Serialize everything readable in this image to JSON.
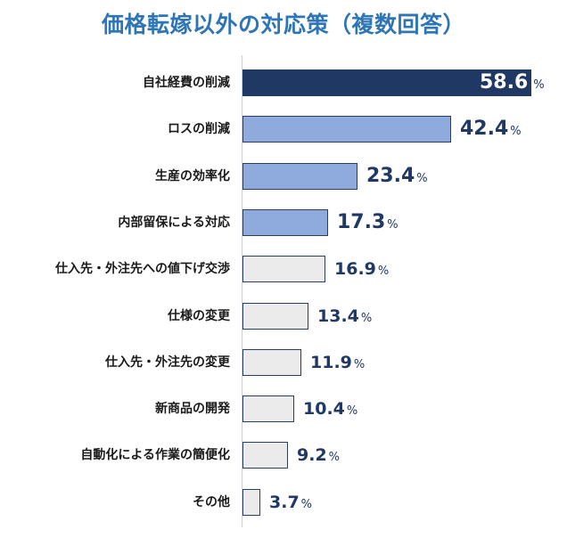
{
  "title": "価格転嫁以外の対応策（複数回答）",
  "colors": {
    "title": "#2e75b6",
    "top_bar": "#1f3864",
    "mid_bar": "#8faadc",
    "low_bar": "#ebebeb",
    "value_text": "#1f3864"
  },
  "chart_data": {
    "type": "bar",
    "orientation": "horizontal",
    "title": "価格転嫁以外の対応策（複数回答）",
    "xlabel": "",
    "ylabel": "",
    "unit": "%",
    "categories": [
      "自社経費の削減",
      "ロスの削減",
      "生産の効率化",
      "内部留保による対応",
      "仕入先・外注先への値下げ交渉",
      "仕様の変更",
      "仕入先・外注先の変更",
      "新商品の開発",
      "自動化による作業の簡便化",
      "その他"
    ],
    "values": [
      58.6,
      42.4,
      23.4,
      17.3,
      16.9,
      13.4,
      11.9,
      10.4,
      9.2,
      3.7
    ],
    "grid": false,
    "legend": null
  },
  "rows": [
    {
      "label": "自社経費の削減",
      "value": "58.6",
      "pct": "%"
    },
    {
      "label": "ロスの削減",
      "value": "42.4",
      "pct": "%"
    },
    {
      "label": "生産の効率化",
      "value": "23.4",
      "pct": "%"
    },
    {
      "label": "内部留保による対応",
      "value": "17.3",
      "pct": "%"
    },
    {
      "label": "仕入先・外注先への値下げ交渉",
      "value": "16.9",
      "pct": "%"
    },
    {
      "label": "仕様の変更",
      "value": "13.4",
      "pct": "%"
    },
    {
      "label": "仕入先・外注先の変更",
      "value": "11.9",
      "pct": "%"
    },
    {
      "label": "新商品の開発",
      "value": "10.4",
      "pct": "%"
    },
    {
      "label": "自動化による作業の簡便化",
      "value": "9.2",
      "pct": "%"
    },
    {
      "label": "その他",
      "value": "3.7",
      "pct": "%"
    }
  ]
}
